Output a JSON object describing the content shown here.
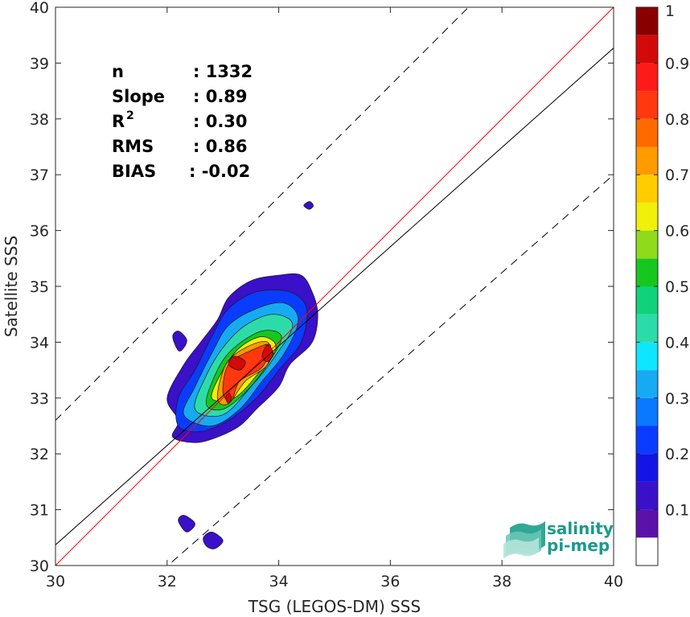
{
  "chart_data": {
    "type": "heatmap",
    "subtype": "filled-contour density scatter",
    "title": "",
    "xlabel": "TSG (LEGOS-DM) SSS",
    "ylabel": "Satellite SSS",
    "xlim": [
      30,
      40
    ],
    "ylim": [
      30,
      40
    ],
    "x_ticks": [
      "30",
      "32",
      "34",
      "36",
      "38",
      "40"
    ],
    "y_ticks": [
      "30",
      "31",
      "32",
      "33",
      "34",
      "35",
      "36",
      "37",
      "38",
      "39",
      "40"
    ],
    "colorbar": {
      "range": [
        0,
        1
      ],
      "ticks": [
        "0.1",
        "0.2",
        "0.3",
        "0.4",
        "0.5",
        "0.6",
        "0.7",
        "0.8",
        "0.9",
        "1"
      ],
      "levels": [
        0.05,
        0.1,
        0.15,
        0.2,
        0.25,
        0.3,
        0.35,
        0.4,
        0.45,
        0.5,
        0.55,
        0.6,
        0.65,
        0.7,
        0.75,
        0.8,
        0.85,
        0.9,
        0.95
      ],
      "colors": [
        "#ffffff",
        "#5b12a8",
        "#3a10c8",
        "#1414e6",
        "#0a3cff",
        "#0a78ff",
        "#16aaf2",
        "#0ee6ff",
        "#2cdca8",
        "#0fd27a",
        "#16c81e",
        "#8fda1a",
        "#f0f00a",
        "#ffcc00",
        "#ff9a00",
        "#ff6a00",
        "#ff3810",
        "#ff1a1a",
        "#d20a0a",
        "#880000"
      ]
    },
    "stats": [
      {
        "label": "n",
        "value": ": 1332"
      },
      {
        "label": "Slope",
        "value": ": 0.89"
      },
      {
        "label": "R",
        "superscript": "2",
        "value": ": 0.30"
      },
      {
        "label": "RMS",
        "value": ": 0.86"
      },
      {
        "label": "BIAS",
        "value": ": -0.02"
      }
    ],
    "lines": [
      {
        "name": "1:1 line",
        "color": "#ff0000",
        "style": "solid",
        "points": [
          [
            30,
            30
          ],
          [
            40,
            40
          ]
        ]
      },
      {
        "name": "regression",
        "color": "#000000",
        "style": "solid",
        "points": [
          [
            30,
            30.37
          ],
          [
            40,
            39.27
          ]
        ]
      },
      {
        "name": "upper bound",
        "color": "#000000",
        "style": "dashed",
        "points": [
          [
            30,
            32.6
          ],
          [
            38.6,
            41.2
          ]
        ]
      },
      {
        "name": "lower bound",
        "color": "#000000",
        "style": "dashed",
        "points": [
          [
            31.9,
            29.9
          ],
          [
            40,
            37.0
          ]
        ]
      }
    ],
    "density_regions": [
      {
        "level": 0.1,
        "points": [
          [
            32.1,
            32.3
          ],
          [
            32.2,
            32.6
          ],
          [
            32.0,
            33.0
          ],
          [
            32.3,
            33.6
          ],
          [
            32.6,
            34.0
          ],
          [
            32.9,
            34.4
          ],
          [
            33.1,
            34.8
          ],
          [
            33.5,
            35.1
          ],
          [
            34.0,
            35.2
          ],
          [
            34.4,
            35.2
          ],
          [
            34.6,
            34.9
          ],
          [
            34.7,
            34.5
          ],
          [
            34.6,
            34.0
          ],
          [
            34.2,
            33.6
          ],
          [
            34.0,
            33.2
          ],
          [
            33.6,
            32.8
          ],
          [
            33.3,
            32.5
          ],
          [
            32.9,
            32.3
          ],
          [
            32.5,
            32.2
          ]
        ]
      },
      {
        "level": 0.1,
        "points": [
          [
            32.1,
            34.1
          ],
          [
            32.2,
            34.2
          ],
          [
            32.35,
            34.05
          ],
          [
            32.3,
            33.9
          ],
          [
            32.2,
            33.85
          ]
        ]
      },
      {
        "level": 0.1,
        "points": [
          [
            32.2,
            30.8
          ],
          [
            32.3,
            30.9
          ],
          [
            32.5,
            30.75
          ],
          [
            32.35,
            30.6
          ]
        ]
      },
      {
        "level": 0.1,
        "points": [
          [
            32.65,
            30.5
          ],
          [
            32.8,
            30.6
          ],
          [
            33.0,
            30.45
          ],
          [
            32.85,
            30.3
          ],
          [
            32.7,
            30.35
          ]
        ]
      },
      {
        "level": 0.1,
        "points": [
          [
            34.45,
            36.45
          ],
          [
            34.55,
            36.52
          ],
          [
            34.62,
            36.45
          ],
          [
            34.55,
            36.38
          ]
        ]
      },
      {
        "level": 0.2,
        "points": [
          [
            32.2,
            32.5
          ],
          [
            32.2,
            33.0
          ],
          [
            32.5,
            33.5
          ],
          [
            32.8,
            34.1
          ],
          [
            33.1,
            34.6
          ],
          [
            33.6,
            34.9
          ],
          [
            34.2,
            34.9
          ],
          [
            34.5,
            34.6
          ],
          [
            34.4,
            34.0
          ],
          [
            34.0,
            33.5
          ],
          [
            33.6,
            33.0
          ],
          [
            33.1,
            32.6
          ],
          [
            32.6,
            32.4
          ]
        ]
      },
      {
        "level": 0.3,
        "points": [
          [
            32.3,
            32.7
          ],
          [
            32.5,
            33.2
          ],
          [
            32.8,
            33.8
          ],
          [
            33.1,
            34.3
          ],
          [
            33.6,
            34.6
          ],
          [
            34.1,
            34.7
          ],
          [
            34.35,
            34.4
          ],
          [
            34.1,
            33.8
          ],
          [
            33.7,
            33.3
          ],
          [
            33.3,
            32.8
          ],
          [
            32.8,
            32.5
          ]
        ]
      },
      {
        "level": 0.4,
        "points": [
          [
            32.5,
            32.8
          ],
          [
            32.7,
            33.4
          ],
          [
            33.0,
            33.9
          ],
          [
            33.4,
            34.3
          ],
          [
            33.9,
            34.5
          ],
          [
            34.25,
            34.3
          ],
          [
            33.9,
            33.7
          ],
          [
            33.5,
            33.2
          ],
          [
            33.0,
            32.7
          ]
        ]
      },
      {
        "level": 0.5,
        "points": [
          [
            32.7,
            32.9
          ],
          [
            32.9,
            33.5
          ],
          [
            33.2,
            33.9
          ],
          [
            33.7,
            34.2
          ],
          [
            34.05,
            34.1
          ],
          [
            33.8,
            33.6
          ],
          [
            33.4,
            33.1
          ],
          [
            33.0,
            32.8
          ]
        ]
      },
      {
        "level": 0.6,
        "points": [
          [
            32.8,
            33.0
          ],
          [
            33.0,
            33.5
          ],
          [
            33.3,
            33.9
          ],
          [
            33.7,
            34.1
          ],
          [
            33.95,
            33.9
          ],
          [
            33.6,
            33.4
          ],
          [
            33.2,
            33.0
          ]
        ]
      },
      {
        "level": 0.7,
        "points": [
          [
            32.9,
            33.0
          ],
          [
            33.05,
            33.6
          ],
          [
            33.4,
            33.9
          ],
          [
            33.8,
            34.0
          ],
          [
            33.8,
            33.6
          ],
          [
            33.4,
            33.3
          ],
          [
            33.1,
            32.9
          ]
        ]
      },
      {
        "level": 0.8,
        "points": [
          [
            33.0,
            33.1
          ],
          [
            33.1,
            33.6
          ],
          [
            33.5,
            33.85
          ],
          [
            33.85,
            33.95
          ],
          [
            33.7,
            33.55
          ],
          [
            33.3,
            33.3
          ],
          [
            33.15,
            32.95
          ]
        ]
      },
      {
        "level": 0.9,
        "points": [
          [
            33.1,
            33.6
          ],
          [
            33.2,
            33.75
          ],
          [
            33.4,
            33.65
          ],
          [
            33.3,
            33.5
          ]
        ]
      },
      {
        "level": 0.9,
        "points": [
          [
            33.7,
            33.75
          ],
          [
            33.8,
            33.95
          ],
          [
            33.9,
            33.8
          ],
          [
            33.8,
            33.65
          ]
        ]
      },
      {
        "level": 0.9,
        "points": [
          [
            33.05,
            33.0
          ],
          [
            33.1,
            33.1
          ],
          [
            33.15,
            33.0
          ],
          [
            33.1,
            32.9
          ]
        ]
      }
    ]
  },
  "logo": {
    "line1": "salinity",
    "line2": "pi-mep",
    "color": "#1a9a8c"
  }
}
